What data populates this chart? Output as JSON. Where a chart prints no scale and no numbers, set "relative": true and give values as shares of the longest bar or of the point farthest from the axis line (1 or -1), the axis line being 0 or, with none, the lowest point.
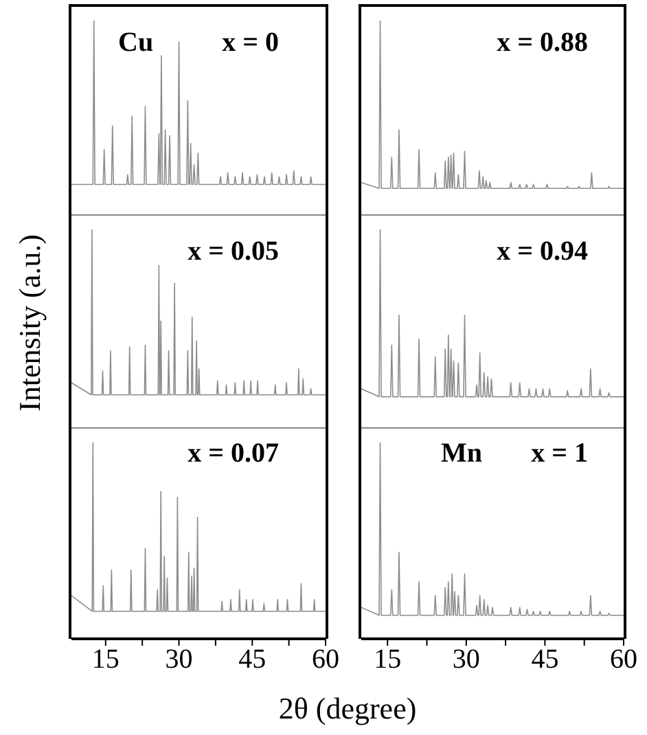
{
  "chart_data": [
    {
      "type": "line",
      "relative": true,
      "xlim": [
        8,
        60
      ],
      "tick_labels": false,
      "annotations": [
        "Cu",
        "x = 0"
      ],
      "x": [
        8,
        12.4,
        12.6,
        12.8,
        14.5,
        14.7,
        14.9,
        16.2,
        16.4,
        16.6,
        19.3,
        19.5,
        19.7,
        20.2,
        20.4,
        20.6,
        22.9,
        23.1,
        23.3,
        25.7,
        25.9,
        26.1,
        26.2,
        26.4,
        26.6,
        27,
        27.2,
        27.4,
        27.9,
        28.1,
        28.3,
        29.8,
        30,
        30.2,
        31.6,
        31.8,
        32,
        32.2,
        32.4,
        32.6,
        32.9,
        33.1,
        33.3,
        33.7,
        33.9,
        34.1,
        38.3,
        38.5,
        38.7,
        39.8,
        40,
        40.2,
        41.3,
        41.5,
        41.7,
        42.8,
        43,
        43.2,
        44.3,
        44.5,
        44.7,
        45.8,
        46,
        46.2,
        47.3,
        47.5,
        47.7,
        48.8,
        49,
        49.2,
        50.3,
        50.5,
        50.7,
        51.8,
        52,
        52.2,
        53.3,
        53.5,
        53.7,
        54.8,
        55,
        55.2,
        56.8,
        57,
        57.2,
        60
      ],
      "series": [
        {
          "color": "#8c8c8c",
          "values": [
            0.16,
            0.16,
            1,
            0.16,
            0.16,
            0.34,
            0.16,
            0.16,
            0.46,
            0.16,
            0.16,
            0.21,
            0.16,
            0.16,
            0.51,
            0.16,
            0.16,
            0.56,
            0.16,
            0.16,
            0.42,
            0.16,
            0.16,
            0.82,
            0.16,
            0.16,
            0.44,
            0.16,
            0.16,
            0.41,
            0.16,
            0.16,
            0.89,
            0.16,
            0.16,
            0.59,
            0.16,
            0.16,
            0.37,
            0.16,
            0.16,
            0.26,
            0.16,
            0.16,
            0.32,
            0.16,
            0.16,
            0.2,
            0.16,
            0.16,
            0.22,
            0.16,
            0.16,
            0.2,
            0.16,
            0.16,
            0.22,
            0.16,
            0.16,
            0.2,
            0.16,
            0.16,
            0.21,
            0.16,
            0.16,
            0.2,
            0.16,
            0.16,
            0.22,
            0.16,
            0.16,
            0.2,
            0.16,
            0.16,
            0.21,
            0.16,
            0.16,
            0.23,
            0.16,
            0.16,
            0.2,
            0.16,
            0.16,
            0.2,
            0.16,
            0.16
          ]
        }
      ]
    },
    {
      "type": "line",
      "relative": true,
      "xlim": [
        10,
        60
      ],
      "tick_labels": false,
      "annotations": [
        "x = 0.88"
      ],
      "x": [
        10,
        13.4,
        13.6,
        13.8,
        15.6,
        15.8,
        16,
        17,
        17.2,
        17.4,
        20.8,
        21,
        21.2,
        23.9,
        24.1,
        24.3,
        25.8,
        26,
        26.2,
        26.4,
        26.6,
        26.8,
        26.9,
        27.1,
        27.3,
        27.4,
        27.6,
        27.8,
        28.3,
        28.5,
        28.7,
        29.5,
        29.7,
        29.9,
        32.3,
        32.5,
        32.7,
        33,
        33.2,
        33.4,
        33.6,
        33.8,
        34,
        34.3,
        34.5,
        34.7,
        38.3,
        38.5,
        38.7,
        40,
        40.2,
        40.4,
        41.3,
        41.5,
        41.7,
        42.6,
        42.8,
        43,
        45.2,
        45.4,
        45.6,
        49.1,
        49.3,
        49.5,
        51.3,
        51.5,
        51.7,
        53.7,
        53.9,
        54.1,
        57,
        57.2,
        57.4,
        60
      ],
      "series": [
        {
          "color": "#8c8c8c",
          "values": [
            0.17,
            0.14,
            1,
            0.14,
            0.14,
            0.3,
            0.14,
            0.14,
            0.44,
            0.14,
            0.14,
            0.34,
            0.14,
            0.14,
            0.22,
            0.14,
            0.14,
            0.28,
            0.14,
            0.14,
            0.3,
            0.14,
            0.14,
            0.31,
            0.14,
            0.14,
            0.32,
            0.14,
            0.14,
            0.21,
            0.14,
            0.14,
            0.33,
            0.14,
            0.14,
            0.23,
            0.14,
            0.14,
            0.2,
            0.14,
            0.14,
            0.18,
            0.14,
            0.14,
            0.17,
            0.14,
            0.14,
            0.17,
            0.14,
            0.14,
            0.16,
            0.14,
            0.14,
            0.16,
            0.14,
            0.14,
            0.16,
            0.14,
            0.14,
            0.16,
            0.14,
            0.14,
            0.15,
            0.14,
            0.14,
            0.15,
            0.14,
            0.14,
            0.22,
            0.14,
            0.14,
            0.15,
            0.14,
            0.14
          ]
        }
      ]
    },
    {
      "type": "line",
      "relative": true,
      "xlim": [
        8,
        60
      ],
      "tick_labels": false,
      "annotations": [
        "x = 0.05"
      ],
      "ylabel": "Intensity (a.u.)",
      "x": [
        8,
        12.05,
        12.2,
        12.35,
        14.25,
        14.4,
        14.55,
        15.85,
        16,
        16.15,
        19.75,
        19.9,
        20.05,
        22.95,
        23.1,
        23.25,
        25.75,
        25.9,
        26.05,
        26.15,
        26.3,
        26.45,
        27.75,
        27.9,
        28.05,
        28.95,
        29.1,
        29.25,
        31.65,
        31.8,
        31.95,
        32.55,
        32.7,
        32.85,
        33.45,
        33.6,
        33.75,
        33.95,
        34.1,
        34.25,
        37.75,
        37.9,
        38.05,
        39.55,
        39.7,
        39.85,
        41.35,
        41.5,
        41.65,
        43.15,
        43.3,
        43.45,
        44.55,
        44.7,
        44.85,
        45.95,
        46.1,
        46.25,
        49.55,
        49.7,
        49.85,
        51.85,
        52,
        52.15,
        54.35,
        54.5,
        54.65,
        55.25,
        55.4,
        55.55,
        56.85,
        57,
        57.15,
        60
      ],
      "series": [
        {
          "color": "#8c8c8c",
          "values": [
            0.23,
            0.17,
            1,
            0.17,
            0.17,
            0.29,
            0.17,
            0.17,
            0.39,
            0.17,
            0.17,
            0.41,
            0.17,
            0.17,
            0.42,
            0.17,
            0.17,
            0.82,
            0.17,
            0.17,
            0.54,
            0.17,
            0.17,
            0.39,
            0.17,
            0.17,
            0.73,
            0.17,
            0.17,
            0.39,
            0.17,
            0.17,
            0.56,
            0.17,
            0.17,
            0.44,
            0.17,
            0.17,
            0.3,
            0.17,
            0.17,
            0.24,
            0.17,
            0.17,
            0.22,
            0.17,
            0.17,
            0.23,
            0.17,
            0.17,
            0.24,
            0.17,
            0.17,
            0.24,
            0.17,
            0.17,
            0.24,
            0.17,
            0.17,
            0.22,
            0.17,
            0.17,
            0.23,
            0.17,
            0.17,
            0.3,
            0.17,
            0.17,
            0.25,
            0.17,
            0.17,
            0.2,
            0.17,
            0.17
          ]
        }
      ]
    },
    {
      "type": "line",
      "relative": true,
      "xlim": [
        10,
        60
      ],
      "tick_labels": false,
      "annotations": [
        "x = 0.94"
      ],
      "x": [
        10,
        13.4,
        13.6,
        13.8,
        15.6,
        15.8,
        16,
        17,
        17.2,
        17.4,
        20.8,
        21,
        21.2,
        23.9,
        24.1,
        24.3,
        25.8,
        26,
        26.2,
        26.4,
        26.6,
        26.8,
        26.9,
        27.1,
        27.3,
        27.4,
        27.6,
        27.8,
        28.3,
        28.5,
        28.7,
        29.5,
        29.7,
        29.9,
        31.8,
        32,
        32.2,
        32.4,
        32.6,
        32.8,
        33.2,
        33.4,
        33.6,
        33.9,
        34.1,
        34.3,
        34.6,
        34.8,
        35,
        38.3,
        38.5,
        38.7,
        40,
        40.2,
        40.4,
        41.8,
        42,
        42.2,
        43.1,
        43.3,
        43.5,
        44.4,
        44.6,
        44.8,
        45.7,
        45.9,
        46.1,
        49.1,
        49.3,
        49.5,
        51.7,
        51.9,
        52.1,
        53.5,
        53.7,
        53.9,
        55.3,
        55.5,
        55.7,
        57,
        57.2,
        57.4,
        60
      ],
      "series": [
        {
          "color": "#8c8c8c",
          "values": [
            0.2,
            0.16,
            1,
            0.16,
            0.16,
            0.42,
            0.16,
            0.16,
            0.57,
            0.16,
            0.16,
            0.45,
            0.16,
            0.16,
            0.36,
            0.16,
            0.16,
            0.4,
            0.16,
            0.16,
            0.47,
            0.16,
            0.16,
            0.4,
            0.16,
            0.16,
            0.34,
            0.16,
            0.16,
            0.33,
            0.16,
            0.16,
            0.57,
            0.16,
            0.16,
            0.22,
            0.16,
            0.16,
            0.38,
            0.16,
            0.16,
            0.28,
            0.16,
            0.16,
            0.26,
            0.16,
            0.16,
            0.25,
            0.16,
            0.16,
            0.23,
            0.16,
            0.16,
            0.23,
            0.16,
            0.16,
            0.2,
            0.16,
            0.16,
            0.2,
            0.16,
            0.16,
            0.2,
            0.16,
            0.16,
            0.2,
            0.16,
            0.16,
            0.19,
            0.16,
            0.16,
            0.2,
            0.16,
            0.16,
            0.3,
            0.16,
            0.16,
            0.2,
            0.16,
            0.16,
            0.18,
            0.16,
            0.16
          ]
        }
      ]
    },
    {
      "type": "line",
      "relative": true,
      "xlim": [
        8,
        60
      ],
      "xticks": [
        15,
        {
          "value": 22.5,
          "label": null
        },
        30,
        {
          "value": 37.5,
          "label": null
        },
        45,
        {
          "value": 52.5,
          "label": null
        },
        60
      ],
      "tick_labels": "x",
      "annotations": [
        "x = 0.07"
      ],
      "xlabel": "2θ (degree)",
      "x": [
        8,
        12.25,
        12.4,
        12.55,
        14.35,
        14.5,
        14.65,
        16.05,
        16.2,
        16.35,
        20.05,
        20.2,
        20.35,
        22.95,
        23.1,
        23.25,
        25.45,
        25.6,
        25.75,
        26.15,
        26.3,
        26.45,
        26.85,
        27,
        27.15,
        27.45,
        27.6,
        27.75,
        29.55,
        29.7,
        29.85,
        31.85,
        32,
        32.15,
        32.45,
        32.6,
        32.75,
        32.95,
        33.1,
        33.25,
        33.65,
        33.8,
        33.95,
        38.65,
        38.8,
        38.95,
        40.45,
        40.6,
        40.75,
        42.25,
        42.4,
        42.55,
        43.65,
        43.8,
        43.95,
        44.95,
        45.1,
        45.25,
        47.25,
        47.4,
        47.55,
        50.05,
        50.2,
        50.35,
        52.05,
        52.2,
        52.35,
        54.85,
        55,
        55.15,
        57.55,
        57.7,
        57.85,
        60
      ],
      "series": [
        {
          "color": "#8c8c8c",
          "values": [
            0.22,
            0.14,
            1,
            0.14,
            0.14,
            0.27,
            0.14,
            0.14,
            0.35,
            0.14,
            0.14,
            0.35,
            0.14,
            0.14,
            0.46,
            0.14,
            0.14,
            0.25,
            0.14,
            0.14,
            0.75,
            0.14,
            0.14,
            0.42,
            0.14,
            0.14,
            0.31,
            0.14,
            0.14,
            0.72,
            0.14,
            0.14,
            0.44,
            0.14,
            0.14,
            0.32,
            0.14,
            0.14,
            0.36,
            0.14,
            0.14,
            0.62,
            0.14,
            0.14,
            0.19,
            0.14,
            0.14,
            0.2,
            0.14,
            0.14,
            0.25,
            0.14,
            0.14,
            0.2,
            0.14,
            0.14,
            0.2,
            0.14,
            0.14,
            0.18,
            0.14,
            0.14,
            0.2,
            0.14,
            0.14,
            0.2,
            0.14,
            0.14,
            0.28,
            0.14,
            0.14,
            0.2,
            0.14,
            0.14
          ]
        }
      ]
    },
    {
      "type": "line",
      "relative": true,
      "xlim": [
        10,
        60
      ],
      "xticks": [
        15,
        {
          "value": 22.5,
          "label": null
        },
        30,
        {
          "value": 37.5,
          "label": null
        },
        45,
        {
          "value": 52.5,
          "label": null
        },
        60
      ],
      "tick_labels": "x",
      "annotations": [
        "Mn",
        "x = 1"
      ],
      "x": [
        10,
        13.4,
        13.6,
        13.8,
        15.6,
        15.8,
        16,
        17,
        17.2,
        17.4,
        20.8,
        21,
        21.2,
        23.9,
        24.1,
        24.3,
        25.8,
        26,
        26.2,
        26.4,
        26.6,
        26.8,
        27.1,
        27.3,
        27.5,
        27.6,
        27.8,
        28,
        28.3,
        28.5,
        28.7,
        29.5,
        29.7,
        29.9,
        31.8,
        32,
        32.2,
        32.4,
        32.6,
        32.8,
        33.2,
        33.4,
        33.6,
        33.9,
        34.1,
        34.3,
        34.8,
        35,
        35.2,
        38.3,
        38.5,
        38.7,
        40,
        40.2,
        40.4,
        41.4,
        41.6,
        41.8,
        42.6,
        42.8,
        43,
        43.9,
        44.1,
        44.3,
        45.7,
        45.9,
        46.1,
        49.5,
        49.7,
        49.9,
        51.7,
        51.9,
        52.1,
        53.5,
        53.7,
        53.9,
        55.3,
        55.5,
        55.7,
        57,
        57.2,
        57.4,
        60
      ],
      "series": [
        {
          "color": "#8c8c8c",
          "values": [
            0.16,
            0.12,
            1,
            0.12,
            0.12,
            0.25,
            0.12,
            0.12,
            0.44,
            0.12,
            0.12,
            0.29,
            0.12,
            0.12,
            0.22,
            0.12,
            0.12,
            0.26,
            0.12,
            0.12,
            0.29,
            0.12,
            0.12,
            0.33,
            0.12,
            0.12,
            0.24,
            0.12,
            0.12,
            0.22,
            0.12,
            0.12,
            0.33,
            0.12,
            0.12,
            0.17,
            0.12,
            0.12,
            0.22,
            0.12,
            0.12,
            0.2,
            0.12,
            0.12,
            0.17,
            0.12,
            0.12,
            0.16,
            0.12,
            0.12,
            0.16,
            0.12,
            0.12,
            0.16,
            0.12,
            0.12,
            0.15,
            0.12,
            0.12,
            0.14,
            0.12,
            0.12,
            0.14,
            0.12,
            0.12,
            0.14,
            0.12,
            0.12,
            0.14,
            0.12,
            0.12,
            0.14,
            0.12,
            0.12,
            0.22,
            0.12,
            0.12,
            0.14,
            0.12,
            0.12,
            0.13,
            0.12,
            0.12
          ]
        }
      ]
    }
  ]
}
